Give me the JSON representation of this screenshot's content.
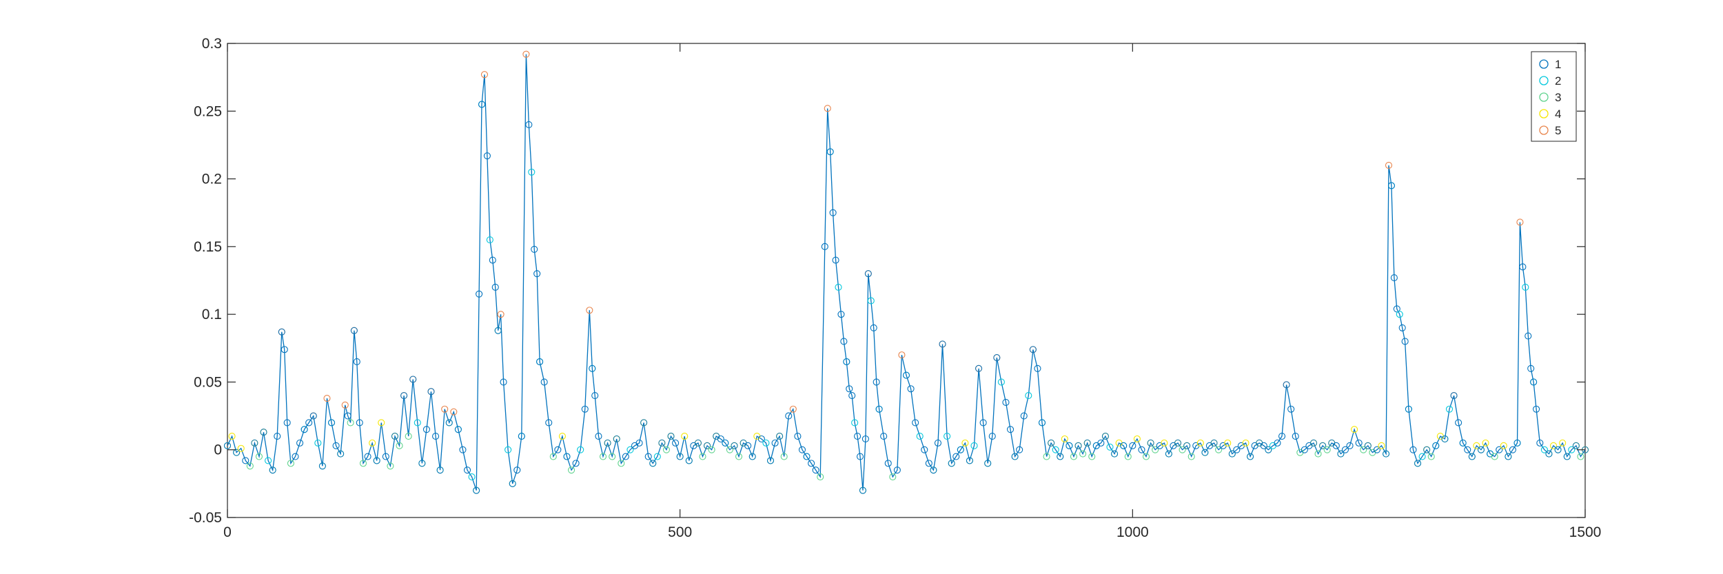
{
  "chart_data": {
    "type": "line",
    "title": "",
    "xlabel": "",
    "ylabel": "",
    "xlim": [
      0,
      1500
    ],
    "ylim": [
      -0.05,
      0.3
    ],
    "xticks": [
      0,
      500,
      1000,
      1500
    ],
    "xtick_labels": [
      "0",
      "500",
      "1000",
      "1500"
    ],
    "yticks": [
      -0.05,
      0,
      0.05,
      0.1,
      0.15,
      0.2,
      0.25,
      0.3
    ],
    "ytick_labels": [
      "-0.05",
      "0",
      "0.05",
      "0.1",
      "0.15",
      "0.2",
      "0.25",
      "0.3"
    ],
    "grid": false,
    "legend_position": "top-right",
    "line_color": "#0072BD",
    "series": [
      {
        "name": "1",
        "marker": "circle",
        "color": "#0072BD"
      },
      {
        "name": "2",
        "marker": "circle",
        "color": "#00C8DC"
      },
      {
        "name": "3",
        "marker": "circle",
        "color": "#5FD38D"
      },
      {
        "name": "4",
        "marker": "circle",
        "color": "#F5E600"
      },
      {
        "name": "5",
        "marker": "circle",
        "color": "#E8834A"
      }
    ],
    "points": [
      [
        0,
        0.003
      ],
      [
        5,
        0.01
      ],
      [
        10,
        -0.002
      ],
      [
        15,
        0.001
      ],
      [
        20,
        -0.008
      ],
      [
        25,
        -0.012
      ],
      [
        30,
        0.005
      ],
      [
        35,
        -0.005
      ],
      [
        40,
        0.013
      ],
      [
        45,
        -0.008
      ],
      [
        50,
        -0.015
      ],
      [
        55,
        0.01
      ],
      [
        60,
        0.087
      ],
      [
        63,
        0.074
      ],
      [
        66,
        0.02
      ],
      [
        70,
        -0.01
      ],
      [
        75,
        -0.005
      ],
      [
        80,
        0.005
      ],
      [
        85,
        0.015
      ],
      [
        90,
        0.02
      ],
      [
        95,
        0.025
      ],
      [
        100,
        0.005
      ],
      [
        105,
        -0.012
      ],
      [
        110,
        0.038
      ],
      [
        115,
        0.02
      ],
      [
        120,
        0.003
      ],
      [
        125,
        -0.003
      ],
      [
        130,
        0.033
      ],
      [
        133,
        0.025
      ],
      [
        136,
        0.02
      ],
      [
        140,
        0.088
      ],
      [
        143,
        0.065
      ],
      [
        146,
        0.02
      ],
      [
        150,
        -0.01
      ],
      [
        155,
        -0.005
      ],
      [
        160,
        0.005
      ],
      [
        165,
        -0.008
      ],
      [
        170,
        0.02
      ],
      [
        175,
        -0.005
      ],
      [
        180,
        -0.012
      ],
      [
        185,
        0.01
      ],
      [
        190,
        0.003
      ],
      [
        195,
        0.04
      ],
      [
        200,
        0.01
      ],
      [
        205,
        0.052
      ],
      [
        210,
        0.02
      ],
      [
        215,
        -0.01
      ],
      [
        220,
        0.015
      ],
      [
        225,
        0.043
      ],
      [
        230,
        0.01
      ],
      [
        235,
        -0.015
      ],
      [
        240,
        0.03
      ],
      [
        245,
        0.02
      ],
      [
        250,
        0.028
      ],
      [
        255,
        0.015
      ],
      [
        260,
        0.0
      ],
      [
        265,
        -0.015
      ],
      [
        270,
        -0.02
      ],
      [
        275,
        -0.03
      ],
      [
        278,
        0.115
      ],
      [
        281,
        0.255
      ],
      [
        284,
        0.277
      ],
      [
        287,
        0.217
      ],
      [
        290,
        0.155
      ],
      [
        293,
        0.14
      ],
      [
        296,
        0.12
      ],
      [
        299,
        0.088
      ],
      [
        302,
        0.1
      ],
      [
        305,
        0.05
      ],
      [
        310,
        0.0
      ],
      [
        315,
        -0.025
      ],
      [
        320,
        -0.015
      ],
      [
        325,
        0.01
      ],
      [
        330,
        0.292
      ],
      [
        333,
        0.24
      ],
      [
        336,
        0.205
      ],
      [
        339,
        0.148
      ],
      [
        342,
        0.13
      ],
      [
        345,
        0.065
      ],
      [
        350,
        0.05
      ],
      [
        355,
        0.02
      ],
      [
        360,
        -0.005
      ],
      [
        365,
        0.0
      ],
      [
        370,
        0.01
      ],
      [
        375,
        -0.005
      ],
      [
        380,
        -0.015
      ],
      [
        385,
        -0.01
      ],
      [
        390,
        0.0
      ],
      [
        395,
        0.03
      ],
      [
        400,
        0.103
      ],
      [
        403,
        0.06
      ],
      [
        406,
        0.04
      ],
      [
        410,
        0.01
      ],
      [
        415,
        -0.005
      ],
      [
        420,
        0.005
      ],
      [
        425,
        -0.005
      ],
      [
        430,
        0.008
      ],
      [
        435,
        -0.01
      ],
      [
        440,
        -0.005
      ],
      [
        445,
        0.0
      ],
      [
        450,
        0.003
      ],
      [
        455,
        0.005
      ],
      [
        460,
        0.02
      ],
      [
        465,
        -0.005
      ],
      [
        470,
        -0.01
      ],
      [
        475,
        -0.005
      ],
      [
        480,
        0.005
      ],
      [
        485,
        0.0
      ],
      [
        490,
        0.01
      ],
      [
        495,
        0.005
      ],
      [
        500,
        -0.005
      ],
      [
        505,
        0.01
      ],
      [
        510,
        -0.008
      ],
      [
        515,
        0.003
      ],
      [
        520,
        0.005
      ],
      [
        525,
        -0.005
      ],
      [
        530,
        0.003
      ],
      [
        535,
        0.0
      ],
      [
        540,
        0.01
      ],
      [
        545,
        0.008
      ],
      [
        550,
        0.005
      ],
      [
        555,
        0.0
      ],
      [
        560,
        0.003
      ],
      [
        565,
        -0.005
      ],
      [
        570,
        0.005
      ],
      [
        575,
        0.003
      ],
      [
        580,
        -0.005
      ],
      [
        585,
        0.01
      ],
      [
        590,
        0.008
      ],
      [
        595,
        0.005
      ],
      [
        600,
        -0.008
      ],
      [
        605,
        0.005
      ],
      [
        610,
        0.01
      ],
      [
        615,
        -0.005
      ],
      [
        620,
        0.025
      ],
      [
        625,
        0.03
      ],
      [
        630,
        0.01
      ],
      [
        635,
        0.0
      ],
      [
        640,
        -0.005
      ],
      [
        645,
        -0.01
      ],
      [
        650,
        -0.015
      ],
      [
        655,
        -0.02
      ],
      [
        660,
        0.15
      ],
      [
        663,
        0.252
      ],
      [
        666,
        0.22
      ],
      [
        669,
        0.175
      ],
      [
        672,
        0.14
      ],
      [
        675,
        0.12
      ],
      [
        678,
        0.1
      ],
      [
        681,
        0.08
      ],
      [
        684,
        0.065
      ],
      [
        687,
        0.045
      ],
      [
        690,
        0.04
      ],
      [
        693,
        0.02
      ],
      [
        696,
        0.01
      ],
      [
        699,
        -0.005
      ],
      [
        702,
        -0.03
      ],
      [
        705,
        0.008
      ],
      [
        708,
        0.13
      ],
      [
        711,
        0.11
      ],
      [
        714,
        0.09
      ],
      [
        717,
        0.05
      ],
      [
        720,
        0.03
      ],
      [
        725,
        0.01
      ],
      [
        730,
        -0.01
      ],
      [
        735,
        -0.02
      ],
      [
        740,
        -0.015
      ],
      [
        745,
        0.07
      ],
      [
        750,
        0.055
      ],
      [
        755,
        0.045
      ],
      [
        760,
        0.02
      ],
      [
        765,
        0.01
      ],
      [
        770,
        0.0
      ],
      [
        775,
        -0.01
      ],
      [
        780,
        -0.015
      ],
      [
        785,
        0.005
      ],
      [
        790,
        0.078
      ],
      [
        795,
        0.01
      ],
      [
        800,
        -0.01
      ],
      [
        805,
        -0.005
      ],
      [
        810,
        0.0
      ],
      [
        815,
        0.005
      ],
      [
        820,
        -0.008
      ],
      [
        825,
        0.003
      ],
      [
        830,
        0.06
      ],
      [
        835,
        0.02
      ],
      [
        840,
        -0.01
      ],
      [
        845,
        0.01
      ],
      [
        850,
        0.068
      ],
      [
        855,
        0.05
      ],
      [
        860,
        0.035
      ],
      [
        865,
        0.015
      ],
      [
        870,
        -0.005
      ],
      [
        875,
        0.0
      ],
      [
        880,
        0.025
      ],
      [
        885,
        0.04
      ],
      [
        890,
        0.074
      ],
      [
        895,
        0.06
      ],
      [
        900,
        0.02
      ],
      [
        905,
        -0.005
      ],
      [
        910,
        0.005
      ],
      [
        915,
        0.0
      ],
      [
        920,
        -0.005
      ],
      [
        925,
        0.008
      ],
      [
        930,
        0.003
      ],
      [
        935,
        -0.005
      ],
      [
        940,
        0.003
      ],
      [
        945,
        -0.003
      ],
      [
        950,
        0.005
      ],
      [
        955,
        -0.005
      ],
      [
        960,
        0.003
      ],
      [
        965,
        0.005
      ],
      [
        970,
        0.01
      ],
      [
        975,
        0.002
      ],
      [
        980,
        -0.003
      ],
      [
        985,
        0.005
      ],
      [
        990,
        0.003
      ],
      [
        995,
        -0.005
      ],
      [
        1000,
        0.003
      ],
      [
        1005,
        0.008
      ],
      [
        1010,
        0.0
      ],
      [
        1015,
        -0.005
      ],
      [
        1020,
        0.005
      ],
      [
        1025,
        0.0
      ],
      [
        1030,
        0.003
      ],
      [
        1035,
        0.005
      ],
      [
        1040,
        -0.003
      ],
      [
        1045,
        0.003
      ],
      [
        1050,
        0.005
      ],
      [
        1055,
        0.0
      ],
      [
        1060,
        0.003
      ],
      [
        1065,
        -0.005
      ],
      [
        1070,
        0.003
      ],
      [
        1075,
        0.005
      ],
      [
        1080,
        -0.002
      ],
      [
        1085,
        0.003
      ],
      [
        1090,
        0.005
      ],
      [
        1095,
        0.0
      ],
      [
        1100,
        0.003
      ],
      [
        1105,
        0.005
      ],
      [
        1110,
        -0.003
      ],
      [
        1115,
        0.0
      ],
      [
        1120,
        0.003
      ],
      [
        1125,
        0.005
      ],
      [
        1130,
        -0.005
      ],
      [
        1135,
        0.003
      ],
      [
        1140,
        0.005
      ],
      [
        1145,
        0.003
      ],
      [
        1150,
        0.0
      ],
      [
        1155,
        0.003
      ],
      [
        1160,
        0.005
      ],
      [
        1165,
        0.01
      ],
      [
        1170,
        0.048
      ],
      [
        1175,
        0.03
      ],
      [
        1180,
        0.01
      ],
      [
        1185,
        -0.002
      ],
      [
        1190,
        0.0
      ],
      [
        1195,
        0.003
      ],
      [
        1200,
        0.005
      ],
      [
        1205,
        -0.003
      ],
      [
        1210,
        0.003
      ],
      [
        1215,
        0.0
      ],
      [
        1220,
        0.005
      ],
      [
        1225,
        0.003
      ],
      [
        1230,
        -0.003
      ],
      [
        1235,
        0.0
      ],
      [
        1240,
        0.003
      ],
      [
        1245,
        0.015
      ],
      [
        1250,
        0.005
      ],
      [
        1255,
        0.0
      ],
      [
        1260,
        0.003
      ],
      [
        1265,
        -0.002
      ],
      [
        1270,
        0.0
      ],
      [
        1275,
        0.003
      ],
      [
        1280,
        -0.003
      ],
      [
        1283,
        0.21
      ],
      [
        1286,
        0.195
      ],
      [
        1289,
        0.127
      ],
      [
        1292,
        0.104
      ],
      [
        1295,
        0.1
      ],
      [
        1298,
        0.09
      ],
      [
        1301,
        0.08
      ],
      [
        1305,
        0.03
      ],
      [
        1310,
        0.0
      ],
      [
        1315,
        -0.01
      ],
      [
        1320,
        -0.005
      ],
      [
        1325,
        0.0
      ],
      [
        1330,
        -0.005
      ],
      [
        1335,
        0.003
      ],
      [
        1340,
        0.01
      ],
      [
        1345,
        0.008
      ],
      [
        1350,
        0.03
      ],
      [
        1355,
        0.04
      ],
      [
        1360,
        0.02
      ],
      [
        1365,
        0.005
      ],
      [
        1370,
        0.0
      ],
      [
        1375,
        -0.005
      ],
      [
        1380,
        0.003
      ],
      [
        1385,
        0.0
      ],
      [
        1390,
        0.005
      ],
      [
        1395,
        -0.003
      ],
      [
        1400,
        -0.005
      ],
      [
        1405,
        0.0
      ],
      [
        1410,
        0.003
      ],
      [
        1415,
        -0.005
      ],
      [
        1420,
        0.0
      ],
      [
        1425,
        0.005
      ],
      [
        1428,
        0.168
      ],
      [
        1431,
        0.135
      ],
      [
        1434,
        0.12
      ],
      [
        1437,
        0.084
      ],
      [
        1440,
        0.06
      ],
      [
        1443,
        0.05
      ],
      [
        1446,
        0.03
      ],
      [
        1450,
        0.005
      ],
      [
        1455,
        0.0
      ],
      [
        1460,
        -0.003
      ],
      [
        1465,
        0.003
      ],
      [
        1470,
        0.0
      ],
      [
        1475,
        0.005
      ],
      [
        1480,
        -0.005
      ],
      [
        1485,
        0.0
      ],
      [
        1490,
        0.003
      ],
      [
        1495,
        -0.005
      ],
      [
        1500,
        0.0
      ]
    ]
  }
}
